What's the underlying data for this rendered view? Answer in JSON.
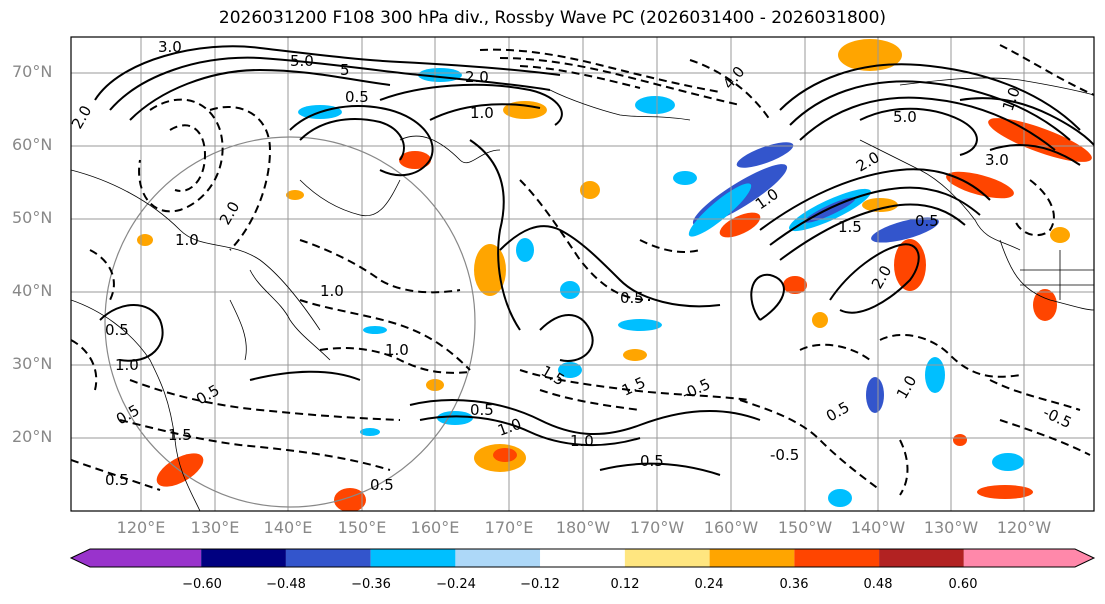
{
  "title": "2026031200 F108 300 hPa div., Rossby Wave PC (2026031400 - 2026031800)",
  "lat_labels": [
    "70°N",
    "60°N",
    "50°N",
    "40°N",
    "30°N",
    "20°N"
  ],
  "lon_labels": [
    "120°E",
    "130°E",
    "140°E",
    "150°E",
    "160°E",
    "170°E",
    "180°W",
    "170°W",
    "160°W",
    "150°W",
    "140°W",
    "130°W",
    "120°W"
  ],
  "colorbar": {
    "colors": [
      "#9933cc",
      "#000080",
      "#3355cc",
      "#00bfff",
      "#add8f8",
      "#ffffff",
      "#ffe680",
      "#ffa500",
      "#ff4500",
      "#b22222",
      "#ff88aa"
    ],
    "labels": [
      "−0.60",
      "−0.48",
      "−0.36",
      "−0.24",
      "−0.12",
      "0.12",
      "0.24",
      "0.36",
      "0.48",
      "0.60"
    ]
  },
  "contour_labels": [
    "3.0",
    "5.0",
    "2.0",
    "5",
    "1.0",
    "0.5",
    "2.0",
    "1.0",
    "4.0",
    "5.0",
    "3.0",
    "1.0",
    "1.5",
    "0.5",
    "2.0",
    "0.5",
    "1.0",
    "0.5",
    "1.0",
    "0.5",
    "1.5",
    "0.5",
    "1.0",
    "0.5",
    "-0.5",
    "-0.5",
    "0.5",
    "1.5",
    "2.0",
    "1.0",
    "0.5",
    "0.5",
    "1.0",
    "1.5",
    "1.0",
    "-0.5",
    "0.5",
    "1.0",
    "2.0"
  ]
}
